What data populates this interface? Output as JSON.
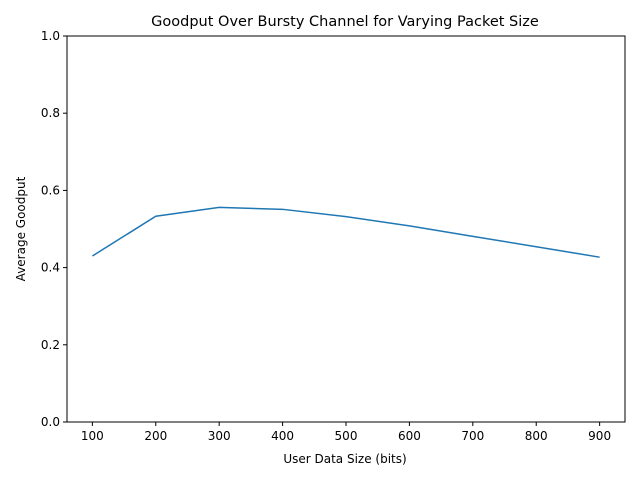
{
  "chart_data": {
    "type": "line",
    "title": "Goodput Over Bursty Channel for Varying Packet Size",
    "xlabel": "User Data Size (bits)",
    "ylabel": "Average Goodput",
    "x": [
      100,
      200,
      300,
      400,
      500,
      600,
      700,
      800,
      900
    ],
    "series": [
      {
        "values": [
          0.43,
          0.533,
          0.556,
          0.551,
          0.532,
          0.508,
          0.481,
          0.454,
          0.427
        ],
        "color": "#1f77b4"
      }
    ],
    "xlim": [
      60,
      940
    ],
    "ylim": [
      0,
      1.0
    ],
    "xticks": [
      100,
      200,
      300,
      400,
      500,
      600,
      700,
      800,
      900
    ],
    "xtick_labels": [
      "100",
      "200",
      "300",
      "400",
      "500",
      "600",
      "700",
      "800",
      "900"
    ],
    "yticks": [
      0,
      0.2,
      0.4,
      0.6,
      0.8,
      1.0
    ],
    "ytick_labels": [
      "0.0",
      "0.2",
      "0.4",
      "0.6",
      "0.8",
      "1.0"
    ],
    "grid": false,
    "legend": "none"
  }
}
